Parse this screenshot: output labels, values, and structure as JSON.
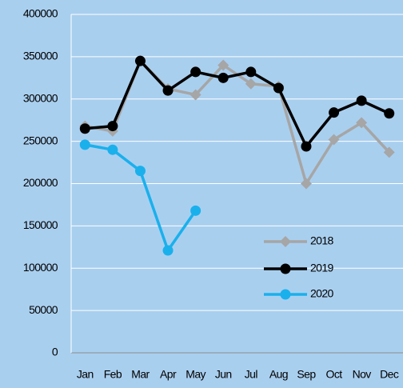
{
  "chart_data": {
    "type": "line",
    "categories": [
      "Jan",
      "Feb",
      "Mar",
      "Apr",
      "May",
      "Jun",
      "Jul",
      "Aug",
      "Sep",
      "Oct",
      "Nov",
      "Dec"
    ],
    "series": [
      {
        "name": "2018",
        "color": "#a6a6a6",
        "marker": "diamond",
        "values": [
          268000,
          262000,
          345000,
          312000,
          305000,
          340000,
          318000,
          315000,
          200000,
          252000,
          272000,
          237000
        ]
      },
      {
        "name": "2019",
        "color": "#000000",
        "marker": "circle",
        "values": [
          265000,
          268000,
          345000,
          310000,
          332000,
          325000,
          332000,
          313000,
          244000,
          284000,
          298000,
          283000
        ]
      },
      {
        "name": "2020",
        "color": "#1ab0ec",
        "marker": "circle",
        "values": [
          246000,
          240000,
          215000,
          121000,
          168000,
          null,
          null,
          null,
          null,
          null,
          null,
          null
        ]
      }
    ],
    "ylim": [
      0,
      400000
    ],
    "yticks": [
      0,
      50000,
      100000,
      150000,
      200000,
      250000,
      300000,
      350000,
      400000
    ],
    "grid": true,
    "legend": "right"
  }
}
